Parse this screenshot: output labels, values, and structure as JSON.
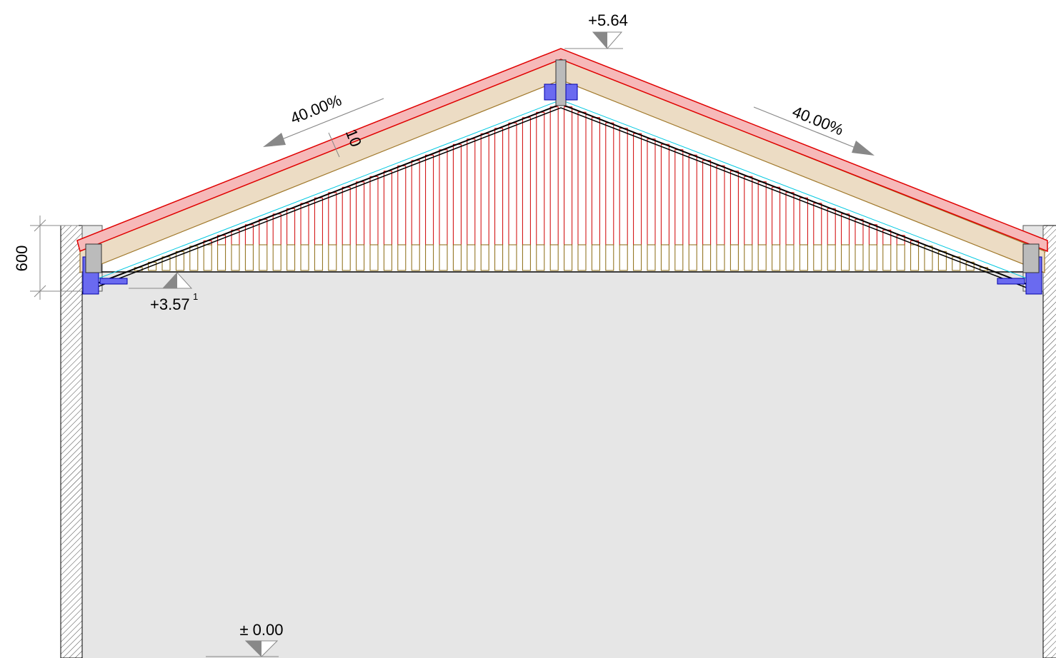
{
  "elevations": {
    "ridge": "+5.64",
    "eaves": "+3.57",
    "eaves_superscript": "1",
    "ground": "± 0.00"
  },
  "slopes": {
    "left": "40.00%",
    "right": "40.00%"
  },
  "dimensions": {
    "layer_gap": "10",
    "wall_height": "600"
  }
}
